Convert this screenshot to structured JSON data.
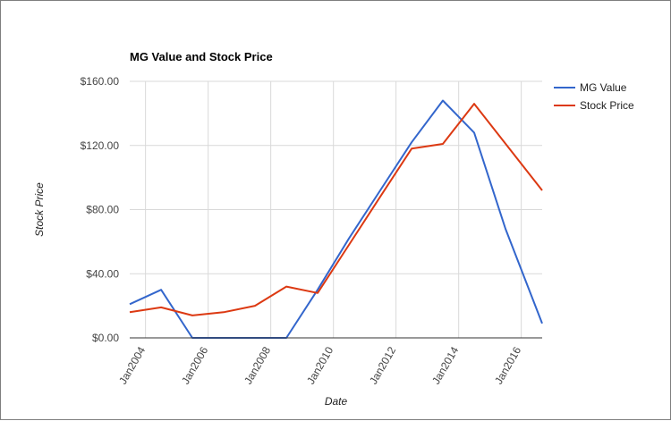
{
  "chart_data": {
    "type": "line",
    "title": "MG Value and Stock Price",
    "xlabel": "Date",
    "ylabel": "Stock Price",
    "ylim": [
      0,
      160
    ],
    "xlim": [
      "2003-07-01",
      "2016-09-01"
    ],
    "y_ticks": [
      {
        "value": 0,
        "label": "$0.00"
      },
      {
        "value": 40,
        "label": "$40.00"
      },
      {
        "value": 80,
        "label": "$80.00"
      },
      {
        "value": 120,
        "label": "$120.00"
      },
      {
        "value": 160,
        "label": "$160.00"
      }
    ],
    "x_ticks": [
      {
        "date": "2004-01-01",
        "label": "Jan2004"
      },
      {
        "date": "2006-01-01",
        "label": "Jan2006"
      },
      {
        "date": "2008-01-01",
        "label": "Jan2008"
      },
      {
        "date": "2010-01-01",
        "label": "Jan2010"
      },
      {
        "date": "2012-01-01",
        "label": "Jan2012"
      },
      {
        "date": "2014-01-01",
        "label": "Jan2014"
      },
      {
        "date": "2016-01-01",
        "label": "Jan2016"
      }
    ],
    "grid": true,
    "legend": "right",
    "series": [
      {
        "name": "MG Value",
        "color": "#3366cc",
        "points": [
          {
            "x": "2003-07-01",
            "y": 21
          },
          {
            "x": "2004-07-01",
            "y": 30
          },
          {
            "x": "2005-07-01",
            "y": 0
          },
          {
            "x": "2006-07-01",
            "y": 0
          },
          {
            "x": "2007-07-01",
            "y": 0
          },
          {
            "x": "2008-07-01",
            "y": 0
          },
          {
            "x": "2009-07-01",
            "y": 30
          },
          {
            "x": "2010-07-01",
            "y": 62
          },
          {
            "x": "2011-07-01",
            "y": 92
          },
          {
            "x": "2012-07-01",
            "y": 122
          },
          {
            "x": "2013-07-01",
            "y": 148
          },
          {
            "x": "2014-07-01",
            "y": 128
          },
          {
            "x": "2015-07-01",
            "y": 68
          },
          {
            "x": "2016-09-01",
            "y": 9
          }
        ]
      },
      {
        "name": "Stock Price",
        "color": "#dc3912",
        "points": [
          {
            "x": "2003-07-01",
            "y": 16
          },
          {
            "x": "2004-07-01",
            "y": 19
          },
          {
            "x": "2005-07-01",
            "y": 14
          },
          {
            "x": "2006-07-01",
            "y": 16
          },
          {
            "x": "2007-07-01",
            "y": 20
          },
          {
            "x": "2008-07-01",
            "y": 32
          },
          {
            "x": "2009-07-01",
            "y": 28
          },
          {
            "x": "2010-07-01",
            "y": 58
          },
          {
            "x": "2011-07-01",
            "y": 88
          },
          {
            "x": "2012-07-01",
            "y": 118
          },
          {
            "x": "2013-07-01",
            "y": 121
          },
          {
            "x": "2014-07-01",
            "y": 146
          },
          {
            "x": "2016-09-01",
            "y": 92
          }
        ]
      }
    ]
  }
}
